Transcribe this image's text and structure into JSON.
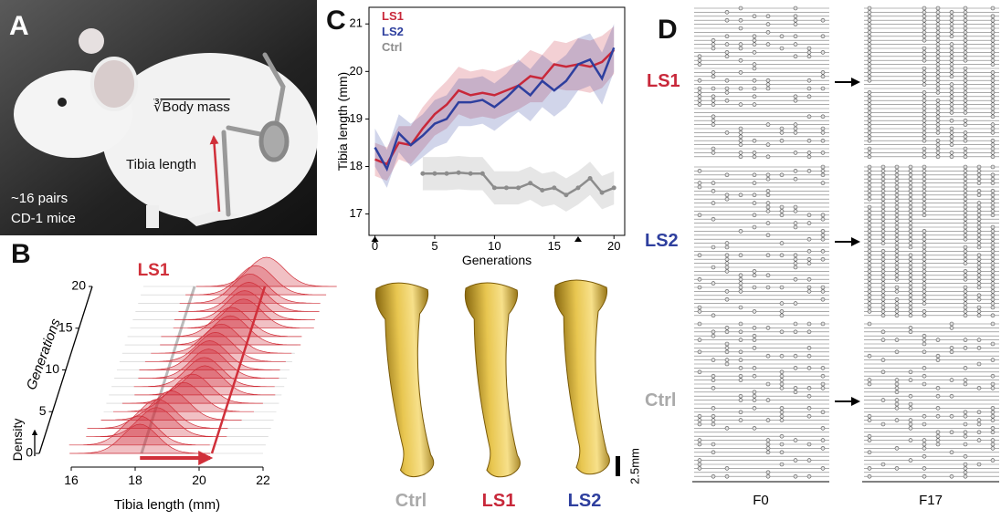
{
  "panel_labels": [
    "A",
    "B",
    "C",
    "D"
  ],
  "panel_a": {
    "body_mass_label": "∛Body mass",
    "tibia_label": "Tibia length",
    "note": [
      "~16 pairs",
      "CD-1 mice"
    ]
  },
  "chart_data": [
    {
      "type": "band-line",
      "xlabel": "Generations",
      "ylabel": "Tibia length (mm)",
      "x": [
        0,
        1,
        2,
        3,
        4,
        5,
        6,
        7,
        8,
        9,
        10,
        11,
        12,
        13,
        14,
        15,
        16,
        17,
        18,
        19,
        20
      ],
      "xlim": [
        -0.5,
        20.9
      ],
      "xticks": [
        0,
        5,
        10,
        15,
        20
      ],
      "ylim": [
        16.55,
        21.35
      ],
      "yticks": [
        17,
        18,
        19,
        20,
        21
      ],
      "markers": [
        0,
        17
      ],
      "series": [
        {
          "name": "LS1",
          "color": "#c8283a",
          "values": [
            18.15,
            18.05,
            18.5,
            18.45,
            18.8,
            19.1,
            19.3,
            19.6,
            19.5,
            19.55,
            19.5,
            19.6,
            19.7,
            19.9,
            19.85,
            20.15,
            20.1,
            20.15,
            20.1,
            20.2,
            20.45
          ],
          "spread": [
            0.35,
            0.35,
            0.35,
            0.4,
            0.45,
            0.45,
            0.5,
            0.5,
            0.5,
            0.5,
            0.5,
            0.5,
            0.5,
            0.55,
            0.5,
            0.5,
            0.5,
            0.55,
            0.55,
            0.55,
            0.5
          ]
        },
        {
          "name": "LS2",
          "color": "#2e3f9e",
          "values": [
            18.4,
            17.95,
            18.7,
            18.45,
            18.65,
            18.9,
            19.0,
            19.35,
            19.35,
            19.4,
            19.25,
            19.45,
            19.7,
            19.5,
            19.8,
            19.6,
            19.8,
            20.15,
            20.25,
            19.85,
            20.5
          ],
          "spread": [
            0.4,
            0.4,
            0.4,
            0.45,
            0.45,
            0.5,
            0.5,
            0.5,
            0.5,
            0.5,
            0.5,
            0.5,
            0.55,
            0.55,
            0.55,
            0.55,
            0.55,
            0.55,
            0.55,
            0.55,
            0.5
          ]
        },
        {
          "name": "Ctrl",
          "color": "#8c8c8c",
          "values": [
            null,
            null,
            null,
            null,
            17.85,
            17.85,
            17.85,
            17.87,
            17.85,
            17.85,
            17.55,
            17.55,
            17.55,
            17.65,
            17.5,
            17.55,
            17.4,
            17.55,
            17.75,
            17.45,
            17.55
          ],
          "spread": [
            null,
            null,
            null,
            null,
            0.35,
            0.35,
            0.35,
            0.35,
            0.35,
            0.35,
            0.35,
            0.35,
            0.35,
            0.35,
            0.35,
            0.35,
            0.35,
            0.35,
            0.35,
            0.35,
            0.35
          ]
        }
      ]
    },
    {
      "type": "ridgeline",
      "title": "LS1",
      "xlabel": "Tibia length (mm)",
      "ylabel": "Generations",
      "zlabel": "Density",
      "color": "#d0303a",
      "xlim": [
        16,
        22
      ],
      "xticks": [
        16,
        18,
        20,
        22
      ],
      "ylim": [
        0,
        20
      ],
      "yticks": [
        0,
        5,
        10,
        15,
        20
      ],
      "generations": [
        0,
        1,
        2,
        3,
        4,
        5,
        6,
        7,
        8,
        9,
        10,
        11,
        12,
        13,
        14,
        15,
        16,
        17,
        18,
        19,
        20
      ],
      "means": [
        18.15,
        18.05,
        18.5,
        18.45,
        18.8,
        19.1,
        19.3,
        19.6,
        19.5,
        19.55,
        19.5,
        19.6,
        19.7,
        19.9,
        19.85,
        20.15,
        20.1,
        20.15,
        20.1,
        20.2,
        20.45
      ],
      "reference_lines": [
        {
          "value": 18.2,
          "color": "#aaaaaa"
        },
        {
          "value": 20.4,
          "color": "#d0303a"
        }
      ],
      "shift": [
        18.15,
        20.4
      ]
    }
  ],
  "bones": {
    "labels": [
      "Ctrl",
      "LS1",
      "LS2"
    ],
    "scale_bar": "2.5mm"
  },
  "panel_d": {
    "groups": [
      "LS1",
      "LS2",
      "Ctrl"
    ],
    "columns": [
      "F0",
      "F17"
    ]
  }
}
